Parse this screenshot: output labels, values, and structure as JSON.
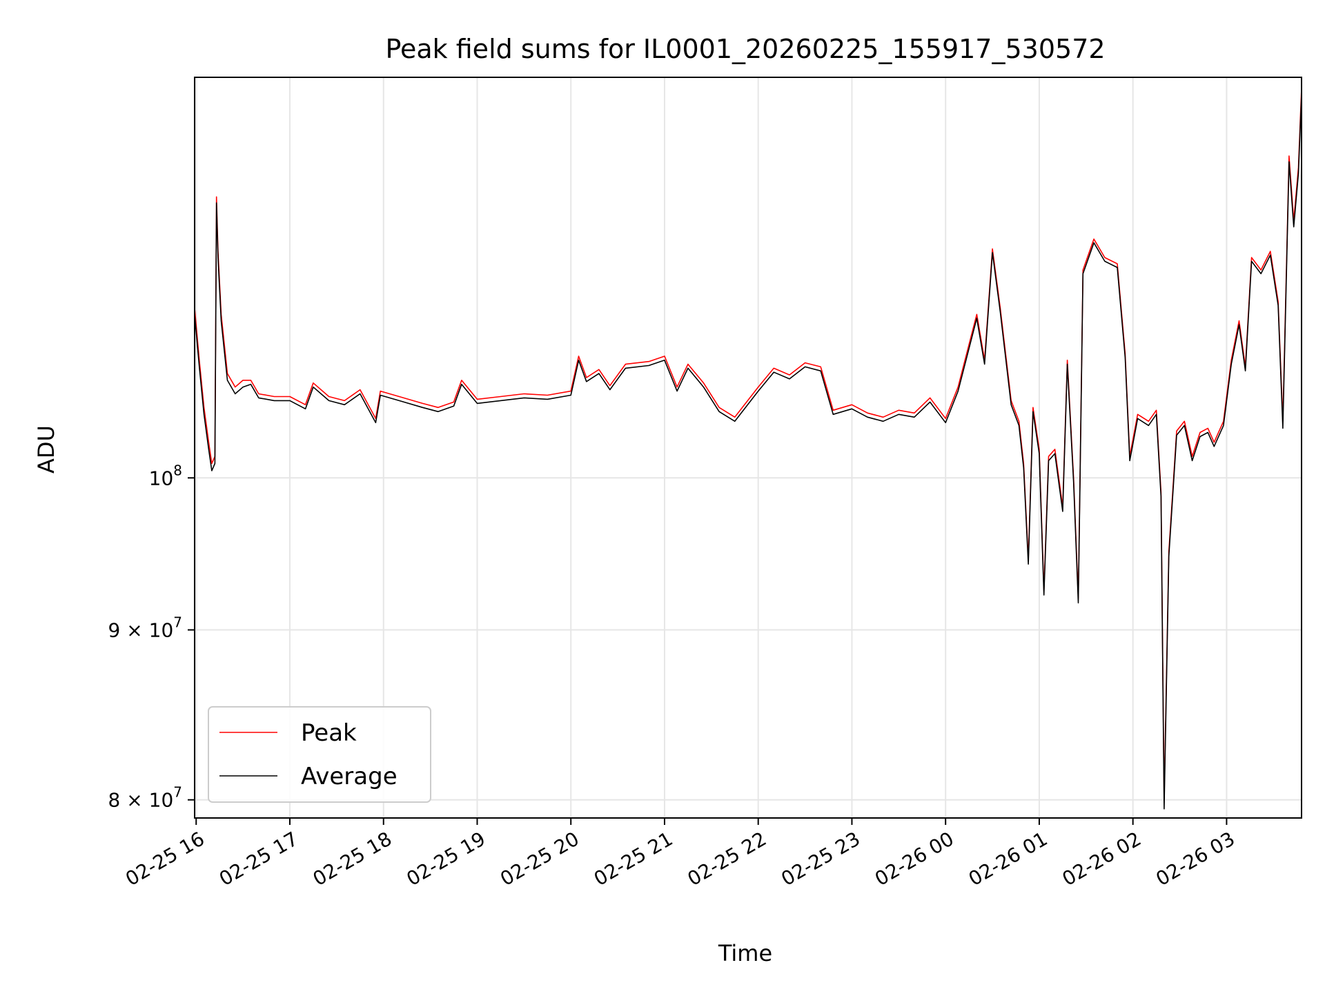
{
  "chart_data": {
    "type": "line",
    "title": "Peak field sums for IL0001_20260225_155917_530572",
    "xlabel": "Time",
    "ylabel": "ADU",
    "yscale": "log",
    "xlim": [
      "2026-02-25 15:59",
      "2026-02-26 03:48"
    ],
    "ylim": [
      79000000,
      132000000
    ],
    "grid": true,
    "legend_position": "lower-left",
    "x_ticks": [
      {
        "x": "2026-02-25 16:00",
        "label": "02-25 16"
      },
      {
        "x": "2026-02-25 17:00",
        "label": "02-25 17"
      },
      {
        "x": "2026-02-25 18:00",
        "label": "02-25 18"
      },
      {
        "x": "2026-02-25 19:00",
        "label": "02-25 19"
      },
      {
        "x": "2026-02-25 20:00",
        "label": "02-25 20"
      },
      {
        "x": "2026-02-25 21:00",
        "label": "02-25 21"
      },
      {
        "x": "2026-02-25 22:00",
        "label": "02-25 22"
      },
      {
        "x": "2026-02-25 23:00",
        "label": "02-25 23"
      },
      {
        "x": "2026-02-26 00:00",
        "label": "02-26 00"
      },
      {
        "x": "2026-02-26 01:00",
        "label": "02-26 01"
      },
      {
        "x": "2026-02-26 02:00",
        "label": "02-26 02"
      },
      {
        "x": "2026-02-26 03:00",
        "label": "02-26 03"
      }
    ],
    "y_ticks": [
      {
        "value": 80000000,
        "mantissa": "8",
        "exponent": "7"
      },
      {
        "value": 90000000,
        "mantissa": "9",
        "exponent": "7"
      },
      {
        "value": 100000000,
        "mantissa": "",
        "exponent": "8"
      }
    ],
    "series": [
      {
        "name": "Peak",
        "color": "#ff0000",
        "points": [
          [
            "2026-02-25 15:59",
            112500000
          ],
          [
            "2026-02-25 16:02",
            108500000
          ],
          [
            "2026-02-25 16:05",
            105000000
          ],
          [
            "2026-02-25 16:08",
            102500000
          ],
          [
            "2026-02-25 16:10",
            101000000
          ],
          [
            "2026-02-25 16:12",
            101500000
          ],
          [
            "2026-02-25 16:13",
            121500000
          ],
          [
            "2026-02-25 16:14",
            117000000
          ],
          [
            "2026-02-25 16:16",
            112000000
          ],
          [
            "2026-02-25 16:20",
            107500000
          ],
          [
            "2026-02-25 16:25",
            106500000
          ],
          [
            "2026-02-25 16:30",
            107000000
          ],
          [
            "2026-02-25 16:35",
            107000000
          ],
          [
            "2026-02-25 16:40",
            106000000
          ],
          [
            "2026-02-25 16:50",
            105800000
          ],
          [
            "2026-02-25 17:00",
            105800000
          ],
          [
            "2026-02-25 17:10",
            105200000
          ],
          [
            "2026-02-25 17:15",
            106800000
          ],
          [
            "2026-02-25 17:25",
            105800000
          ],
          [
            "2026-02-25 17:35",
            105500000
          ],
          [
            "2026-02-25 17:45",
            106300000
          ],
          [
            "2026-02-25 17:55",
            104200000
          ],
          [
            "2026-02-25 17:58",
            106200000
          ],
          [
            "2026-02-25 18:10",
            105800000
          ],
          [
            "2026-02-25 18:25",
            105300000
          ],
          [
            "2026-02-25 18:35",
            105000000
          ],
          [
            "2026-02-25 18:45",
            105400000
          ],
          [
            "2026-02-25 18:50",
            107000000
          ],
          [
            "2026-02-25 19:00",
            105600000
          ],
          [
            "2026-02-25 19:15",
            105800000
          ],
          [
            "2026-02-25 19:30",
            106000000
          ],
          [
            "2026-02-25 19:45",
            105900000
          ],
          [
            "2026-02-25 20:00",
            106200000
          ],
          [
            "2026-02-25 20:05",
            108800000
          ],
          [
            "2026-02-25 20:10",
            107200000
          ],
          [
            "2026-02-25 20:18",
            107800000
          ],
          [
            "2026-02-25 20:25",
            106600000
          ],
          [
            "2026-02-25 20:35",
            108200000
          ],
          [
            "2026-02-25 20:50",
            108400000
          ],
          [
            "2026-02-25 21:00",
            108800000
          ],
          [
            "2026-02-25 21:08",
            106500000
          ],
          [
            "2026-02-25 21:15",
            108200000
          ],
          [
            "2026-02-25 21:25",
            106800000
          ],
          [
            "2026-02-25 21:35",
            105000000
          ],
          [
            "2026-02-25 21:45",
            104300000
          ],
          [
            "2026-02-25 22:00",
            106500000
          ],
          [
            "2026-02-25 22:10",
            107900000
          ],
          [
            "2026-02-25 22:20",
            107400000
          ],
          [
            "2026-02-25 22:30",
            108300000
          ],
          [
            "2026-02-25 22:40",
            108000000
          ],
          [
            "2026-02-25 22:48",
            104800000
          ],
          [
            "2026-02-25 23:00",
            105200000
          ],
          [
            "2026-02-25 23:10",
            104600000
          ],
          [
            "2026-02-25 23:20",
            104300000
          ],
          [
            "2026-02-25 23:30",
            104800000
          ],
          [
            "2026-02-25 23:40",
            104600000
          ],
          [
            "2026-02-25 23:50",
            105700000
          ],
          [
            "2026-02-26 00:00",
            104200000
          ],
          [
            "2026-02-26 00:08",
            106500000
          ],
          [
            "2026-02-26 00:20",
            112000000
          ],
          [
            "2026-02-26 00:25",
            108500000
          ],
          [
            "2026-02-26 00:30",
            117200000
          ],
          [
            "2026-02-26 00:35",
            112500000
          ],
          [
            "2026-02-26 00:42",
            105500000
          ],
          [
            "2026-02-26 00:47",
            104000000
          ],
          [
            "2026-02-26 00:50",
            101000000
          ],
          [
            "2026-02-26 00:53",
            94500000
          ],
          [
            "2026-02-26 00:56",
            105000000
          ],
          [
            "2026-02-26 01:00",
            102000000
          ],
          [
            "2026-02-26 01:03",
            92500000
          ],
          [
            "2026-02-26 01:06",
            101500000
          ],
          [
            "2026-02-26 01:10",
            102000000
          ],
          [
            "2026-02-26 01:15",
            98000000
          ],
          [
            "2026-02-26 01:18",
            108500000
          ],
          [
            "2026-02-26 01:22",
            100000000
          ],
          [
            "2026-02-26 01:25",
            92000000
          ],
          [
            "2026-02-26 01:28",
            115500000
          ],
          [
            "2026-02-26 01:35",
            118000000
          ],
          [
            "2026-02-26 01:42",
            116500000
          ],
          [
            "2026-02-26 01:50",
            116000000
          ],
          [
            "2026-02-26 01:55",
            109000000
          ],
          [
            "2026-02-26 01:58",
            101500000
          ],
          [
            "2026-02-26 02:03",
            104500000
          ],
          [
            "2026-02-26 02:10",
            104000000
          ],
          [
            "2026-02-26 02:15",
            104800000
          ],
          [
            "2026-02-26 02:18",
            99000000
          ],
          [
            "2026-02-26 02:20",
            80000000
          ],
          [
            "2026-02-26 02:23",
            95000000
          ],
          [
            "2026-02-26 02:28",
            103300000
          ],
          [
            "2026-02-26 02:33",
            104000000
          ],
          [
            "2026-02-26 02:38",
            101500000
          ],
          [
            "2026-02-26 02:43",
            103200000
          ],
          [
            "2026-02-26 02:48",
            103500000
          ],
          [
            "2026-02-26 02:52",
            102500000
          ],
          [
            "2026-02-26 02:58",
            104000000
          ],
          [
            "2026-02-26 03:03",
            108500000
          ],
          [
            "2026-02-26 03:08",
            111500000
          ],
          [
            "2026-02-26 03:12",
            108000000
          ],
          [
            "2026-02-26 03:16",
            116500000
          ],
          [
            "2026-02-26 03:22",
            115500000
          ],
          [
            "2026-02-26 03:28",
            117000000
          ],
          [
            "2026-02-26 03:33",
            113000000
          ],
          [
            "2026-02-26 03:36",
            104000000
          ],
          [
            "2026-02-26 03:40",
            125000000
          ],
          [
            "2026-02-26 03:43",
            119500000
          ],
          [
            "2026-02-26 03:46",
            124000000
          ],
          [
            "2026-02-26 03:48",
            131000000
          ]
        ]
      },
      {
        "name": "Average",
        "color": "#000000",
        "points": [
          [
            "2026-02-25 15:59",
            112000000
          ],
          [
            "2026-02-25 16:02",
            108000000
          ],
          [
            "2026-02-25 16:05",
            104500000
          ],
          [
            "2026-02-25 16:08",
            102000000
          ],
          [
            "2026-02-25 16:10",
            100500000
          ],
          [
            "2026-02-25 16:12",
            101000000
          ],
          [
            "2026-02-25 16:13",
            121000000
          ],
          [
            "2026-02-25 16:14",
            116500000
          ],
          [
            "2026-02-25 16:16",
            111500000
          ],
          [
            "2026-02-25 16:20",
            107000000
          ],
          [
            "2026-02-25 16:25",
            106000000
          ],
          [
            "2026-02-25 16:30",
            106500000
          ],
          [
            "2026-02-25 16:35",
            106700000
          ],
          [
            "2026-02-25 16:40",
            105700000
          ],
          [
            "2026-02-25 16:50",
            105500000
          ],
          [
            "2026-02-25 17:00",
            105500000
          ],
          [
            "2026-02-25 17:10",
            104900000
          ],
          [
            "2026-02-25 17:15",
            106500000
          ],
          [
            "2026-02-25 17:25",
            105500000
          ],
          [
            "2026-02-25 17:35",
            105200000
          ],
          [
            "2026-02-25 17:45",
            106000000
          ],
          [
            "2026-02-25 17:55",
            103900000
          ],
          [
            "2026-02-25 17:58",
            105900000
          ],
          [
            "2026-02-25 18:10",
            105500000
          ],
          [
            "2026-02-25 18:25",
            105000000
          ],
          [
            "2026-02-25 18:35",
            104700000
          ],
          [
            "2026-02-25 18:45",
            105100000
          ],
          [
            "2026-02-25 18:50",
            106700000
          ],
          [
            "2026-02-25 19:00",
            105300000
          ],
          [
            "2026-02-25 19:15",
            105500000
          ],
          [
            "2026-02-25 19:30",
            105700000
          ],
          [
            "2026-02-25 19:45",
            105600000
          ],
          [
            "2026-02-25 20:00",
            105900000
          ],
          [
            "2026-02-25 20:05",
            108500000
          ],
          [
            "2026-02-25 20:10",
            106900000
          ],
          [
            "2026-02-25 20:18",
            107500000
          ],
          [
            "2026-02-25 20:25",
            106300000
          ],
          [
            "2026-02-25 20:35",
            107900000
          ],
          [
            "2026-02-25 20:50",
            108100000
          ],
          [
            "2026-02-25 21:00",
            108500000
          ],
          [
            "2026-02-25 21:08",
            106200000
          ],
          [
            "2026-02-25 21:15",
            107900000
          ],
          [
            "2026-02-25 21:25",
            106500000
          ],
          [
            "2026-02-25 21:35",
            104700000
          ],
          [
            "2026-02-25 21:45",
            104000000
          ],
          [
            "2026-02-25 22:00",
            106200000
          ],
          [
            "2026-02-25 22:10",
            107600000
          ],
          [
            "2026-02-25 22:20",
            107100000
          ],
          [
            "2026-02-25 22:30",
            108000000
          ],
          [
            "2026-02-25 22:40",
            107700000
          ],
          [
            "2026-02-25 22:48",
            104500000
          ],
          [
            "2026-02-25 23:00",
            104900000
          ],
          [
            "2026-02-25 23:10",
            104300000
          ],
          [
            "2026-02-25 23:20",
            104000000
          ],
          [
            "2026-02-25 23:30",
            104500000
          ],
          [
            "2026-02-25 23:40",
            104300000
          ],
          [
            "2026-02-25 23:50",
            105400000
          ],
          [
            "2026-02-26 00:00",
            103900000
          ],
          [
            "2026-02-26 00:08",
            106200000
          ],
          [
            "2026-02-26 00:20",
            111700000
          ],
          [
            "2026-02-26 00:25",
            108200000
          ],
          [
            "2026-02-26 00:30",
            116900000
          ],
          [
            "2026-02-26 00:35",
            112200000
          ],
          [
            "2026-02-26 00:42",
            105200000
          ],
          [
            "2026-02-26 00:47",
            103700000
          ],
          [
            "2026-02-26 00:50",
            100700000
          ],
          [
            "2026-02-26 00:53",
            94200000
          ],
          [
            "2026-02-26 00:56",
            104700000
          ],
          [
            "2026-02-26 01:00",
            101700000
          ],
          [
            "2026-02-26 01:03",
            92200000
          ],
          [
            "2026-02-26 01:06",
            101200000
          ],
          [
            "2026-02-26 01:10",
            101700000
          ],
          [
            "2026-02-26 01:15",
            97700000
          ],
          [
            "2026-02-26 01:18",
            108200000
          ],
          [
            "2026-02-26 01:22",
            99700000
          ],
          [
            "2026-02-26 01:25",
            91700000
          ],
          [
            "2026-02-26 01:28",
            115200000
          ],
          [
            "2026-02-26 01:35",
            117700000
          ],
          [
            "2026-02-26 01:42",
            116200000
          ],
          [
            "2026-02-26 01:50",
            115700000
          ],
          [
            "2026-02-26 01:55",
            108700000
          ],
          [
            "2026-02-26 01:58",
            101200000
          ],
          [
            "2026-02-26 02:03",
            104200000
          ],
          [
            "2026-02-26 02:10",
            103700000
          ],
          [
            "2026-02-26 02:15",
            104500000
          ],
          [
            "2026-02-26 02:18",
            98700000
          ],
          [
            "2026-02-26 02:20",
            79500000
          ],
          [
            "2026-02-26 02:23",
            94700000
          ],
          [
            "2026-02-26 02:28",
            103000000
          ],
          [
            "2026-02-26 02:33",
            103700000
          ],
          [
            "2026-02-26 02:38",
            101200000
          ],
          [
            "2026-02-26 02:43",
            102900000
          ],
          [
            "2026-02-26 02:48",
            103200000
          ],
          [
            "2026-02-26 02:52",
            102200000
          ],
          [
            "2026-02-26 02:58",
            103700000
          ],
          [
            "2026-02-26 03:03",
            108200000
          ],
          [
            "2026-02-26 03:08",
            111200000
          ],
          [
            "2026-02-26 03:12",
            107700000
          ],
          [
            "2026-02-26 03:16",
            116200000
          ],
          [
            "2026-02-26 03:22",
            115200000
          ],
          [
            "2026-02-26 03:28",
            116700000
          ],
          [
            "2026-02-26 03:33",
            112700000
          ],
          [
            "2026-02-26 03:36",
            103500000
          ],
          [
            "2026-02-26 03:40",
            124500000
          ],
          [
            "2026-02-26 03:43",
            119000000
          ],
          [
            "2026-02-26 03:46",
            123500000
          ],
          [
            "2026-02-26 03:48",
            130500000
          ]
        ]
      }
    ]
  }
}
